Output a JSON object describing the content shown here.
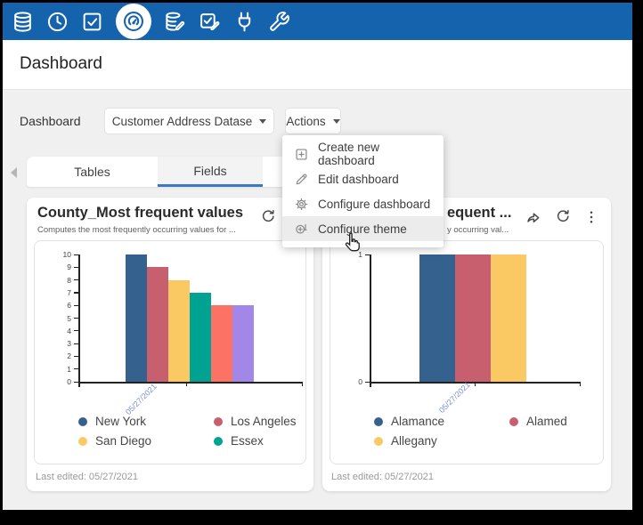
{
  "page": {
    "title": "Dashboard"
  },
  "toolbar": {
    "icons": [
      {
        "name": "database"
      },
      {
        "name": "clock"
      },
      {
        "name": "check-square"
      },
      {
        "name": "gauge",
        "active": true
      },
      {
        "name": "database-edit"
      },
      {
        "name": "check-square-edit"
      },
      {
        "name": "plug"
      },
      {
        "name": "wrench"
      }
    ]
  },
  "controls": {
    "label": "Dashboard",
    "dataset_selector": "Customer Address Datase",
    "actions_label": "Actions"
  },
  "actions_menu": {
    "items": [
      {
        "icon": "plus-square",
        "label": "Create new dashboard",
        "highlighted": false
      },
      {
        "icon": "edit-pencil",
        "label": "Edit dashboard",
        "highlighted": false
      },
      {
        "icon": "gear",
        "label": "Configure dashboard",
        "highlighted": false
      },
      {
        "icon": "theme",
        "label": "Configure theme",
        "highlighted": true
      }
    ]
  },
  "tabs": [
    {
      "label": "Tables",
      "active": false
    },
    {
      "label": "Fields",
      "active": true
    }
  ],
  "cards": [
    {
      "title": "County_Most frequent values",
      "subtitle": "Computes the most frequently occurring values for ...",
      "footer": "Last edited: 05/27/2021"
    },
    {
      "title_visible": "equent ...",
      "subtitle_visible": "y occurring val...",
      "footer": "Last edited: 05/27/2021"
    }
  ],
  "colors": {
    "toolbar_blue": "#1563AC",
    "tab_underline": "#3B78CC",
    "date_label": "#8090D8"
  },
  "chart_data": [
    {
      "type": "bar",
      "title": "County_Most frequent values",
      "x_categories": [
        "05/27/2021"
      ],
      "ylim": [
        0,
        10
      ],
      "yticks": [
        0,
        1,
        2,
        3,
        4,
        5,
        6,
        7,
        8,
        9,
        10
      ],
      "grid": false,
      "series": [
        {
          "label": "New York",
          "value": 10,
          "color": "#35618F"
        },
        {
          "label": "Los Angeles",
          "value": 9,
          "color": "#C75F6F"
        },
        {
          "label": "San Diego",
          "value": 8,
          "color": "#FBC964"
        },
        {
          "label": "Essex",
          "value": 7,
          "color": "#00A392"
        },
        {
          "label": null,
          "value": 6,
          "color": "#FC7265"
        },
        {
          "label": null,
          "value": 6,
          "color": "#A287E8"
        }
      ],
      "legend": [
        {
          "label": "New York",
          "color": "#35618F"
        },
        {
          "label": "Los Angeles",
          "color": "#C75F6F"
        },
        {
          "label": "San Diego",
          "color": "#FBC964"
        },
        {
          "label": "Essex",
          "color": "#00A392"
        }
      ],
      "legend_position": "bottom"
    },
    {
      "type": "bar",
      "title": "equent ...",
      "x_categories": [
        "05/27/2021"
      ],
      "ylim": [
        0,
        1
      ],
      "yticks": [
        0,
        1
      ],
      "grid": false,
      "series": [
        {
          "label": "Alamance",
          "value": 1,
          "color": "#35618F"
        },
        {
          "label": "Alamed",
          "value": 1,
          "color": "#C75F6F"
        },
        {
          "label": "Allegany",
          "value": 1,
          "color": "#FBC964"
        }
      ],
      "legend": [
        {
          "label": "Alamance",
          "color": "#35618F"
        },
        {
          "label": "Alamed",
          "color": "#C75F6F"
        },
        {
          "label": "Allegany",
          "color": "#FBC964"
        }
      ],
      "legend_position": "bottom"
    }
  ]
}
